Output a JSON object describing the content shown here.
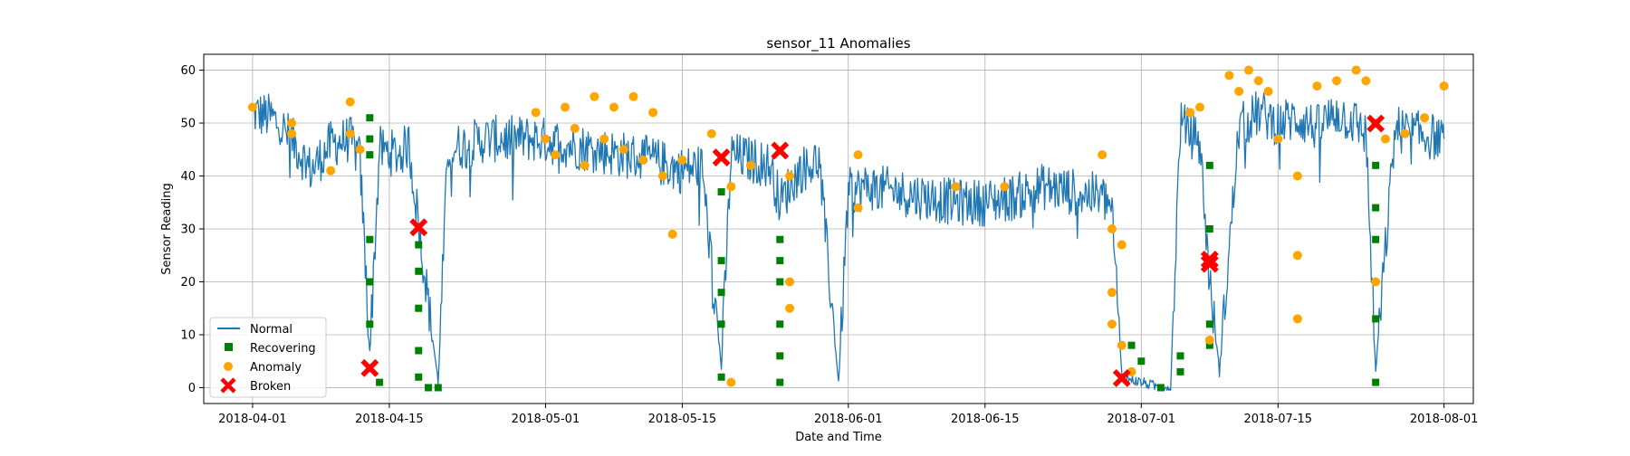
{
  "chart_data": {
    "type": "scatter",
    "title": "sensor_11 Anomalies",
    "xlabel": "Date and Time",
    "ylabel": "Sensor Reading",
    "xlim": [
      "2018-03-27",
      "2018-08-04"
    ],
    "ylim": [
      -3,
      63
    ],
    "x_ticks": [
      "2018-04-01",
      "2018-04-15",
      "2018-05-01",
      "2018-05-15",
      "2018-06-01",
      "2018-06-15",
      "2018-07-01",
      "2018-07-15",
      "2018-08-01"
    ],
    "y_ticks": [
      0,
      10,
      20,
      30,
      40,
      50,
      60
    ],
    "grid": true,
    "legend_position": "lower-left",
    "legend": [
      "Normal",
      "Recovering",
      "Anomaly",
      "Broken"
    ],
    "colors": {
      "normal": "#1f77b4",
      "recovering": "#008000",
      "anomaly": "#ffa500",
      "broken": "#ff0000"
    },
    "series": [
      {
        "name": "Normal",
        "kind": "line",
        "color": "#1f77b4",
        "x": [
          "2018-04-01",
          "2018-04-03",
          "2018-04-05",
          "2018-04-07",
          "2018-04-09",
          "2018-04-11",
          "2018-04-12",
          "2018-04-13",
          "2018-04-14",
          "2018-04-16",
          "2018-04-17",
          "2018-04-18",
          "2018-04-20",
          "2018-04-21",
          "2018-04-23",
          "2018-04-25",
          "2018-04-27",
          "2018-04-30",
          "2018-05-03",
          "2018-05-06",
          "2018-05-09",
          "2018-05-12",
          "2018-05-15",
          "2018-05-17",
          "2018-05-19",
          "2018-05-20",
          "2018-05-22",
          "2018-05-24",
          "2018-05-25",
          "2018-05-27",
          "2018-05-29",
          "2018-05-31",
          "2018-06-01",
          "2018-06-03",
          "2018-06-06",
          "2018-06-09",
          "2018-06-12",
          "2018-06-15",
          "2018-06-18",
          "2018-06-21",
          "2018-06-24",
          "2018-06-27",
          "2018-06-28",
          "2018-06-29",
          "2018-07-03",
          "2018-07-04",
          "2018-07-05",
          "2018-07-06",
          "2018-07-07",
          "2018-07-08",
          "2018-07-09",
          "2018-07-11",
          "2018-07-13",
          "2018-07-15",
          "2018-07-17",
          "2018-07-19",
          "2018-07-21",
          "2018-07-23",
          "2018-07-24",
          "2018-07-25",
          "2018-07-27",
          "2018-07-29",
          "2018-08-01"
        ],
        "y": [
          52,
          51,
          47,
          41,
          46,
          47,
          43,
          7,
          45,
          44,
          46,
          31,
          1,
          45,
          46,
          47,
          47,
          47,
          46,
          45,
          44,
          43,
          41,
          42,
          4,
          44,
          43,
          42,
          35,
          41,
          43,
          1,
          37,
          38,
          37,
          36,
          35,
          35,
          36,
          38,
          37,
          36,
          34,
          2,
          0,
          0,
          50,
          48,
          46,
          20,
          3,
          49,
          52,
          50,
          51,
          49,
          52,
          50,
          48,
          3,
          49,
          48,
          47
        ]
      },
      {
        "name": "Recovering",
        "kind": "points",
        "color": "#008000",
        "x": [
          "2018-04-13",
          "2018-04-13",
          "2018-04-13",
          "2018-04-13",
          "2018-04-13",
          "2018-04-13",
          "2018-04-14",
          "2018-04-18",
          "2018-04-18",
          "2018-04-18",
          "2018-04-18",
          "2018-04-18",
          "2018-04-19",
          "2018-04-20",
          "2018-05-19",
          "2018-05-19",
          "2018-05-19",
          "2018-05-19",
          "2018-05-19",
          "2018-05-25",
          "2018-05-25",
          "2018-05-25",
          "2018-05-25",
          "2018-05-25",
          "2018-05-25",
          "2018-06-30",
          "2018-07-01",
          "2018-07-03",
          "2018-07-05",
          "2018-07-05",
          "2018-07-08",
          "2018-07-08",
          "2018-07-08",
          "2018-07-08",
          "2018-07-08",
          "2018-07-25",
          "2018-07-25",
          "2018-07-25",
          "2018-07-25",
          "2018-07-25"
        ],
        "y": [
          51,
          47,
          44,
          28,
          20,
          12,
          1,
          27,
          22,
          15,
          7,
          2,
          0,
          0,
          37,
          24,
          18,
          12,
          2,
          28,
          24,
          20,
          12,
          6,
          1,
          8,
          5,
          0,
          6,
          3,
          42,
          30,
          24,
          12,
          8,
          42,
          34,
          28,
          13,
          1
        ]
      },
      {
        "name": "Anomaly",
        "kind": "points",
        "color": "#ffa500",
        "x": [
          "2018-04-01",
          "2018-04-05",
          "2018-04-05",
          "2018-04-09",
          "2018-04-11",
          "2018-04-11",
          "2018-04-12",
          "2018-04-30",
          "2018-05-01",
          "2018-05-02",
          "2018-05-03",
          "2018-05-04",
          "2018-05-05",
          "2018-05-06",
          "2018-05-07",
          "2018-05-08",
          "2018-05-09",
          "2018-05-10",
          "2018-05-11",
          "2018-05-12",
          "2018-05-13",
          "2018-05-14",
          "2018-05-15",
          "2018-05-18",
          "2018-05-20",
          "2018-05-20",
          "2018-05-22",
          "2018-05-26",
          "2018-05-26",
          "2018-05-26",
          "2018-06-02",
          "2018-06-02",
          "2018-06-12",
          "2018-06-17",
          "2018-06-27",
          "2018-06-28",
          "2018-06-28",
          "2018-06-28",
          "2018-06-29",
          "2018-06-29",
          "2018-06-30",
          "2018-07-06",
          "2018-07-07",
          "2018-07-08",
          "2018-07-10",
          "2018-07-11",
          "2018-07-12",
          "2018-07-13",
          "2018-07-14",
          "2018-07-15",
          "2018-07-17",
          "2018-07-17",
          "2018-07-17",
          "2018-07-19",
          "2018-07-21",
          "2018-07-23",
          "2018-07-24",
          "2018-07-25",
          "2018-07-25",
          "2018-07-26",
          "2018-07-28",
          "2018-07-30",
          "2018-08-01"
        ],
        "y": [
          53,
          50,
          48,
          41,
          54,
          48,
          45,
          52,
          47,
          44,
          53,
          49,
          42,
          55,
          47,
          53,
          45,
          55,
          43,
          52,
          40,
          29,
          43,
          48,
          38,
          1,
          42,
          40,
          20,
          15,
          44,
          34,
          38,
          38,
          44,
          30,
          18,
          12,
          27,
          8,
          3,
          52,
          53,
          9,
          59,
          56,
          60,
          58,
          56,
          47,
          40,
          25,
          13,
          57,
          58,
          60,
          58,
          50,
          20,
          47,
          48,
          51,
          57
        ]
      },
      {
        "name": "Broken",
        "kind": "markers",
        "color": "#ff0000",
        "x": [
          "2018-04-13",
          "2018-04-18",
          "2018-05-19",
          "2018-05-25",
          "2018-06-29",
          "2018-07-08",
          "2018-07-08",
          "2018-07-25"
        ],
        "y": [
          3.7,
          30.3,
          43.5,
          44.8,
          1.8,
          24.2,
          23.4,
          49.9
        ]
      }
    ]
  }
}
